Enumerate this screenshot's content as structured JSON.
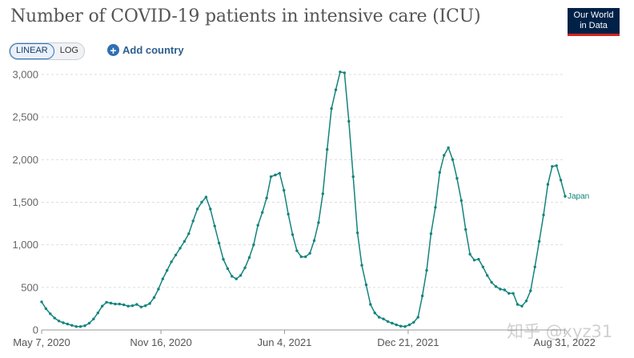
{
  "header": {
    "title": "Number of COVID-19 patients in intensive care (ICU)",
    "logo_line1": "Our World",
    "logo_line2": "in Data"
  },
  "controls": {
    "linear_label": "LINEAR",
    "log_label": "LOG",
    "add_country_label": "Add country",
    "add_icon": "plus-icon"
  },
  "watermark": "知乎 @xyz31",
  "colors": {
    "line": "#13847c",
    "accent": "#2f6fb3",
    "logo_bg": "#002147",
    "logo_bar": "#ce261e"
  },
  "chart_data": {
    "type": "line",
    "title": "Number of COVID-19 patients in intensive care (ICU)",
    "xlabel": "",
    "ylabel": "",
    "ylim": [
      0,
      3000
    ],
    "yticks": [
      0,
      500,
      1000,
      1500,
      2000,
      2500,
      3000
    ],
    "ytick_labels": [
      "0",
      "500",
      "1,000",
      "1,500",
      "2,000",
      "2,500",
      "3,000"
    ],
    "xtick_labels": [
      "May 7, 2020",
      "Nov 16, 2020",
      "Jun 4, 2021",
      "Dec 21, 2021",
      "Aug 31, 2022"
    ],
    "xticks": [
      "2020-05-07",
      "2020-11-16",
      "2021-06-04",
      "2021-12-21",
      "2022-08-31"
    ],
    "grid": true,
    "legend": "inline label at end of line",
    "series": [
      {
        "name": "Japan",
        "color": "#13847c",
        "points": [
          [
            "2020-05-07",
            330
          ],
          [
            "2020-05-14",
            250
          ],
          [
            "2020-05-21",
            190
          ],
          [
            "2020-05-28",
            140
          ],
          [
            "2020-06-04",
            105
          ],
          [
            "2020-06-11",
            85
          ],
          [
            "2020-06-18",
            70
          ],
          [
            "2020-06-25",
            55
          ],
          [
            "2020-07-02",
            40
          ],
          [
            "2020-07-09",
            40
          ],
          [
            "2020-07-16",
            50
          ],
          [
            "2020-07-23",
            80
          ],
          [
            "2020-07-30",
            130
          ],
          [
            "2020-08-06",
            200
          ],
          [
            "2020-08-13",
            280
          ],
          [
            "2020-08-20",
            325
          ],
          [
            "2020-08-27",
            315
          ],
          [
            "2020-09-03",
            305
          ],
          [
            "2020-09-10",
            305
          ],
          [
            "2020-09-17",
            295
          ],
          [
            "2020-09-24",
            280
          ],
          [
            "2020-10-01",
            285
          ],
          [
            "2020-10-08",
            300
          ],
          [
            "2020-10-15",
            270
          ],
          [
            "2020-10-22",
            285
          ],
          [
            "2020-10-29",
            310
          ],
          [
            "2020-11-05",
            380
          ],
          [
            "2020-11-12",
            480
          ],
          [
            "2020-11-19",
            600
          ],
          [
            "2020-11-26",
            700
          ],
          [
            "2020-12-03",
            800
          ],
          [
            "2020-12-10",
            880
          ],
          [
            "2020-12-17",
            960
          ],
          [
            "2020-12-24",
            1040
          ],
          [
            "2020-12-31",
            1130
          ],
          [
            "2021-01-07",
            1280
          ],
          [
            "2021-01-14",
            1420
          ],
          [
            "2021-01-21",
            1500
          ],
          [
            "2021-01-28",
            1560
          ],
          [
            "2021-02-04",
            1420
          ],
          [
            "2021-02-11",
            1220
          ],
          [
            "2021-02-18",
            1020
          ],
          [
            "2021-02-25",
            830
          ],
          [
            "2021-03-04",
            720
          ],
          [
            "2021-03-11",
            630
          ],
          [
            "2021-03-18",
            600
          ],
          [
            "2021-03-25",
            640
          ],
          [
            "2021-04-01",
            730
          ],
          [
            "2021-04-08",
            850
          ],
          [
            "2021-04-15",
            1000
          ],
          [
            "2021-04-22",
            1230
          ],
          [
            "2021-04-29",
            1380
          ],
          [
            "2021-05-06",
            1550
          ],
          [
            "2021-05-13",
            1800
          ],
          [
            "2021-05-20",
            1820
          ],
          [
            "2021-05-27",
            1840
          ],
          [
            "2021-06-03",
            1640
          ],
          [
            "2021-06-10",
            1360
          ],
          [
            "2021-06-17",
            1120
          ],
          [
            "2021-06-24",
            930
          ],
          [
            "2021-07-01",
            860
          ],
          [
            "2021-07-08",
            860
          ],
          [
            "2021-07-15",
            900
          ],
          [
            "2021-07-22",
            1050
          ],
          [
            "2021-07-29",
            1260
          ],
          [
            "2021-08-05",
            1600
          ],
          [
            "2021-08-12",
            2120
          ],
          [
            "2021-08-19",
            2600
          ],
          [
            "2021-08-26",
            2820
          ],
          [
            "2021-09-02",
            3030
          ],
          [
            "2021-09-09",
            3020
          ],
          [
            "2021-09-16",
            2450
          ],
          [
            "2021-09-23",
            1800
          ],
          [
            "2021-09-30",
            1140
          ],
          [
            "2021-10-07",
            760
          ],
          [
            "2021-10-14",
            530
          ],
          [
            "2021-10-21",
            300
          ],
          [
            "2021-10-28",
            200
          ],
          [
            "2021-11-04",
            150
          ],
          [
            "2021-11-11",
            130
          ],
          [
            "2021-11-18",
            100
          ],
          [
            "2021-11-25",
            80
          ],
          [
            "2021-12-02",
            60
          ],
          [
            "2021-12-09",
            45
          ],
          [
            "2021-12-16",
            40
          ],
          [
            "2021-12-23",
            60
          ],
          [
            "2021-12-30",
            90
          ],
          [
            "2022-01-06",
            150
          ],
          [
            "2022-01-13",
            400
          ],
          [
            "2022-01-20",
            700
          ],
          [
            "2022-01-27",
            1130
          ],
          [
            "2022-02-03",
            1440
          ],
          [
            "2022-02-10",
            1850
          ],
          [
            "2022-02-17",
            2050
          ],
          [
            "2022-02-24",
            2140
          ],
          [
            "2022-03-03",
            2000
          ],
          [
            "2022-03-10",
            1780
          ],
          [
            "2022-03-17",
            1520
          ],
          [
            "2022-03-24",
            1180
          ],
          [
            "2022-03-31",
            890
          ],
          [
            "2022-04-07",
            820
          ],
          [
            "2022-04-14",
            830
          ],
          [
            "2022-04-21",
            740
          ],
          [
            "2022-04-28",
            640
          ],
          [
            "2022-05-05",
            560
          ],
          [
            "2022-05-12",
            510
          ],
          [
            "2022-05-19",
            480
          ],
          [
            "2022-05-26",
            470
          ],
          [
            "2022-06-02",
            430
          ],
          [
            "2022-06-09",
            430
          ],
          [
            "2022-06-16",
            300
          ],
          [
            "2022-06-23",
            280
          ],
          [
            "2022-06-30",
            340
          ],
          [
            "2022-07-07",
            460
          ],
          [
            "2022-07-14",
            740
          ],
          [
            "2022-07-21",
            1040
          ],
          [
            "2022-07-28",
            1350
          ],
          [
            "2022-08-04",
            1710
          ],
          [
            "2022-08-11",
            1920
          ],
          [
            "2022-08-18",
            1930
          ],
          [
            "2022-08-25",
            1760
          ],
          [
            "2022-09-01",
            1570
          ]
        ]
      }
    ],
    "series_label": "Japan"
  }
}
